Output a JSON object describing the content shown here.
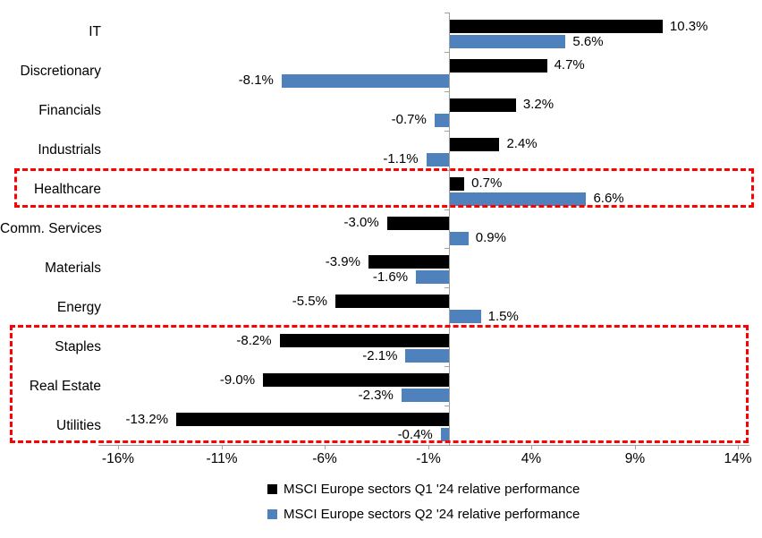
{
  "chart_data": {
    "type": "bar",
    "orientation": "horizontal",
    "title": "",
    "categories": [
      "IT",
      "Discretionary",
      "Financials",
      "Industrials",
      "Healthcare",
      "Comm. Services",
      "Materials",
      "Energy",
      "Staples",
      "Real Estate",
      "Utilities"
    ],
    "series": [
      {
        "name": "MSCI Europe sectors Q1 '24 relative performance",
        "color": "#000000",
        "values": [
          10.3,
          4.7,
          3.2,
          2.4,
          0.7,
          -3.0,
          -3.9,
          -5.5,
          -8.2,
          -9.0,
          -13.2
        ]
      },
      {
        "name": "MSCI Europe sectors Q2 '24 relative performance",
        "color": "#4F81BD",
        "values": [
          5.6,
          -8.1,
          -0.7,
          -1.1,
          6.6,
          0.9,
          -1.6,
          1.5,
          -2.1,
          -2.3,
          -0.4
        ]
      }
    ],
    "value_label_suffix": "%",
    "x_ticks": [
      "-16%",
      "-11%",
      "-6%",
      "-1%",
      "4%",
      "9%",
      "14%"
    ],
    "x_tick_values": [
      -16,
      -11,
      -6,
      -1,
      4,
      9,
      14
    ],
    "xlim": [
      -17,
      14.5
    ],
    "grid": false,
    "legend_position": "bottom",
    "axis_color": "#A0A0A0",
    "highlight_boxes": [
      {
        "categories": [
          "Healthcare"
        ],
        "color": "#FF0000",
        "style": "dashed"
      },
      {
        "categories": [
          "Staples",
          "Real Estate",
          "Utilities"
        ],
        "color": "#FF0000",
        "style": "dashed"
      }
    ]
  }
}
